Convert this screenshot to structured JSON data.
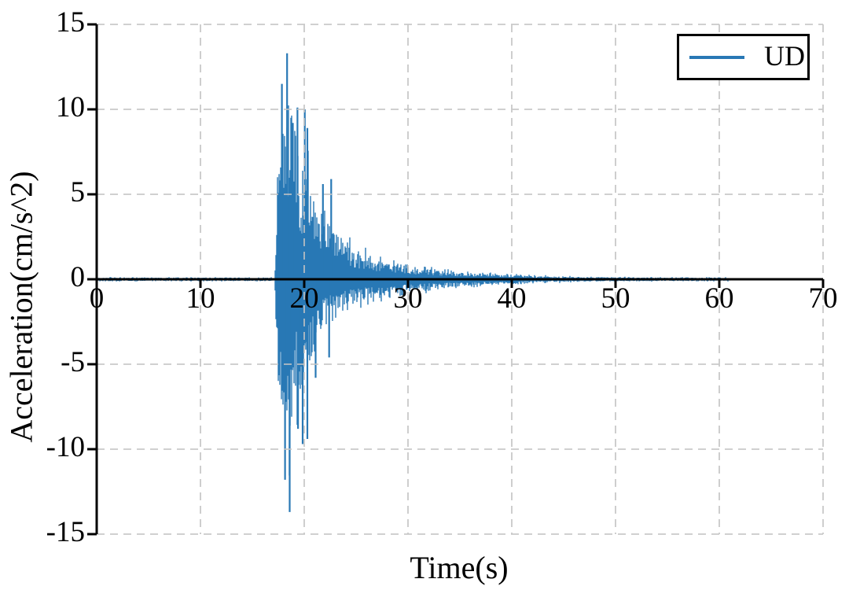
{
  "chart_data": {
    "type": "line",
    "title": "",
    "xlabel": "Time(s)",
    "ylabel": "Acceleration(cm/s^2)",
    "xlim": [
      0,
      70
    ],
    "ylim": [
      -15,
      15
    ],
    "xticks": [
      0,
      10,
      20,
      30,
      40,
      50,
      60,
      70
    ],
    "yticks": [
      15,
      10,
      5,
      0,
      -5,
      -10,
      -15
    ],
    "grid": "dashed",
    "grid_color": "#c3c3c3",
    "axis_color": "#000000",
    "legend": {
      "position": "upper-right",
      "entries": [
        {
          "label": "UD",
          "color": "#2878b5"
        }
      ]
    },
    "series": [
      {
        "name": "UD",
        "color": "#2878b5",
        "t_start": 0,
        "t_end": 61,
        "quiet_noise_amplitude": 0.13,
        "event_onset_s": 17.2,
        "peak_acceleration_positive": 13.3,
        "peak_acceleration_positive_t": 18.35,
        "peak_acceleration_negative": -13.7,
        "peak_acceleration_negative_t": 18.6,
        "envelope_pos": [
          [
            0,
            0.13
          ],
          [
            17.15,
            0.13
          ],
          [
            17.35,
            5.0
          ],
          [
            17.6,
            9.0
          ],
          [
            17.85,
            11.5
          ],
          [
            18.1,
            12.3
          ],
          [
            18.35,
            13.3
          ],
          [
            18.6,
            10.5
          ],
          [
            18.9,
            9.2
          ],
          [
            19.35,
            10.1
          ],
          [
            19.7,
            8.4
          ],
          [
            20.05,
            10.0
          ],
          [
            20.4,
            8.0
          ],
          [
            20.8,
            6.6
          ],
          [
            21.3,
            6.2
          ],
          [
            21.8,
            5.6
          ],
          [
            22.3,
            5.2
          ],
          [
            22.8,
            4.5
          ],
          [
            23.3,
            3.6
          ],
          [
            23.8,
            3.0
          ],
          [
            24.3,
            2.6
          ],
          [
            25,
            2.2
          ],
          [
            26,
            1.9
          ],
          [
            27,
            1.6
          ],
          [
            28,
            1.35
          ],
          [
            29,
            1.15
          ],
          [
            30,
            1.0
          ],
          [
            31,
            0.9
          ],
          [
            32,
            0.8
          ],
          [
            33,
            0.72
          ],
          [
            34,
            0.65
          ],
          [
            35,
            0.58
          ],
          [
            36,
            0.52
          ],
          [
            37,
            0.46
          ],
          [
            38,
            0.41
          ],
          [
            39,
            0.37
          ],
          [
            40,
            0.33
          ],
          [
            41,
            0.3
          ],
          [
            42,
            0.27
          ],
          [
            43,
            0.25
          ],
          [
            44,
            0.23
          ],
          [
            45,
            0.21
          ],
          [
            46,
            0.2
          ],
          [
            48,
            0.18
          ],
          [
            50,
            0.16
          ],
          [
            52,
            0.15
          ],
          [
            55,
            0.14
          ],
          [
            58,
            0.13
          ],
          [
            61,
            0.13
          ]
        ],
        "envelope_neg": [
          [
            0,
            -0.13
          ],
          [
            17.15,
            -0.13
          ],
          [
            17.35,
            -5.5
          ],
          [
            17.6,
            -9.5
          ],
          [
            17.9,
            -11.3
          ],
          [
            18.15,
            -11.8
          ],
          [
            18.6,
            -13.7
          ],
          [
            18.95,
            -10.2
          ],
          [
            19.4,
            -8.8
          ],
          [
            19.85,
            -9.7
          ],
          [
            20.3,
            -9.4
          ],
          [
            20.6,
            -6.5
          ],
          [
            21.1,
            -5.8
          ],
          [
            21.5,
            -4.2
          ],
          [
            22,
            -3.4
          ],
          [
            22.5,
            -3.0
          ],
          [
            23,
            -2.6
          ],
          [
            23.5,
            -2.3
          ],
          [
            24,
            -2.0
          ],
          [
            25,
            -1.8
          ],
          [
            26,
            -1.6
          ],
          [
            27,
            -1.45
          ],
          [
            28,
            -1.3
          ],
          [
            29,
            -1.15
          ],
          [
            30,
            -1.0
          ],
          [
            31,
            -0.9
          ],
          [
            32,
            -0.8
          ],
          [
            33,
            -0.72
          ],
          [
            34,
            -0.65
          ],
          [
            35,
            -0.58
          ],
          [
            36,
            -0.52
          ],
          [
            37,
            -0.46
          ],
          [
            38,
            -0.41
          ],
          [
            39,
            -0.37
          ],
          [
            40,
            -0.33
          ],
          [
            41,
            -0.3
          ],
          [
            42,
            -0.27
          ],
          [
            43,
            -0.25
          ],
          [
            44,
            -0.23
          ],
          [
            45,
            -0.21
          ],
          [
            46,
            -0.2
          ],
          [
            48,
            -0.18
          ],
          [
            50,
            -0.16
          ],
          [
            52,
            -0.15
          ],
          [
            55,
            -0.14
          ],
          [
            58,
            -0.13
          ],
          [
            61,
            -0.13
          ]
        ],
        "peaks_pos": [
          [
            17.85,
            11.5
          ],
          [
            18.35,
            13.3
          ],
          [
            18.9,
            9.2
          ],
          [
            19.35,
            10.1
          ],
          [
            20.05,
            10.0
          ],
          [
            20.3,
            8.9
          ],
          [
            21.8,
            5.6
          ],
          [
            22.6,
            5.9
          ]
        ],
        "peaks_neg": [
          [
            18.15,
            -11.8
          ],
          [
            18.6,
            -13.7
          ],
          [
            19.4,
            -8.8
          ],
          [
            19.85,
            -9.7
          ],
          [
            20.3,
            -9.4
          ],
          [
            21.1,
            -5.8
          ],
          [
            22.4,
            -4.6
          ]
        ]
      }
    ]
  }
}
